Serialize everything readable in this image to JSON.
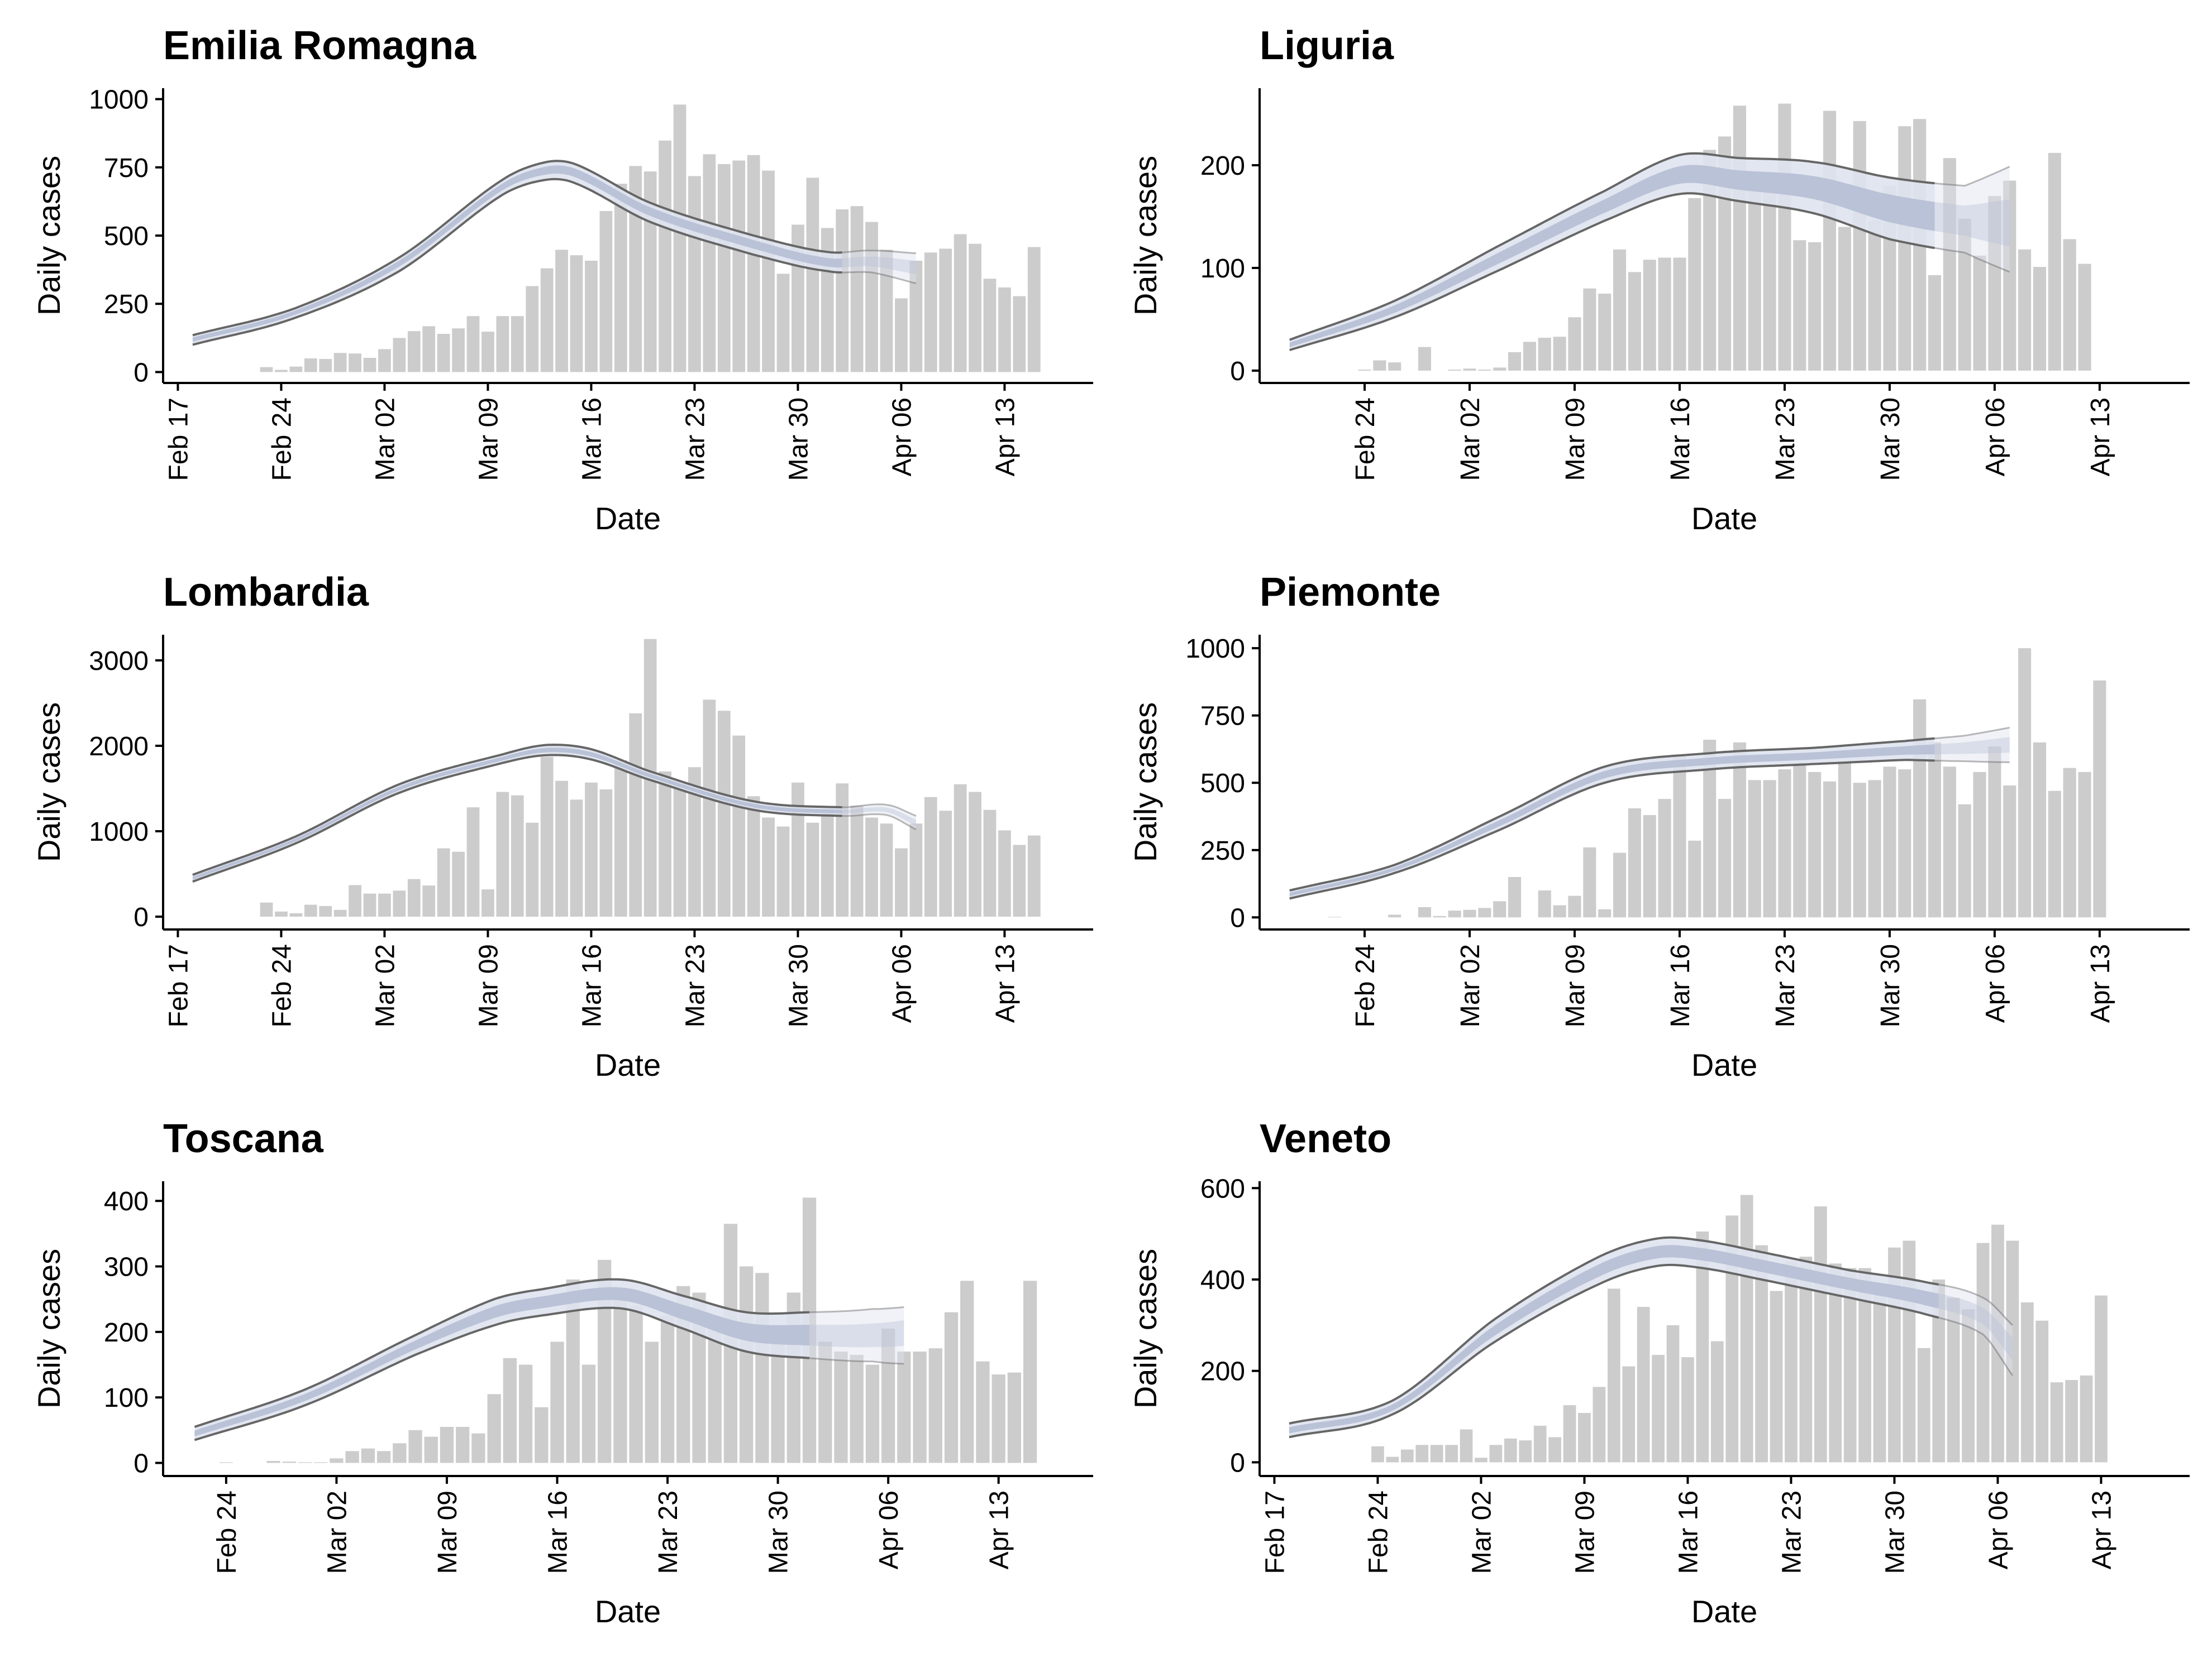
{
  "figure": {
    "colors": {
      "bar": "#cccccc",
      "band_outer": "#dfe3ee",
      "band_inner": "#b7c0d6",
      "outline": "#666666"
    }
  },
  "chart_data": [
    {
      "type": "bar",
      "title": "Emilia Romagna",
      "xlabel": "Date",
      "ylabel": "Daily cases",
      "x_ticks": [
        "Feb 17",
        "Feb 24",
        "Mar 02",
        "Mar 09",
        "Mar 16",
        "Mar 23",
        "Mar 30",
        "Apr 06",
        "Apr 13"
      ],
      "y_ticks": [
        "0",
        "250",
        "500",
        "750",
        "1000"
      ],
      "ylim": [
        -40,
        1040
      ],
      "xlim": [
        "2020-02-16",
        "2020-04-19"
      ],
      "bar_start": "2020-02-23",
      "values": [
        18,
        8,
        20,
        50,
        48,
        70,
        68,
        52,
        84,
        125,
        150,
        168,
        140,
        160,
        205,
        148,
        205,
        205,
        315,
        380,
        448,
        428,
        408,
        590,
        690,
        755,
        735,
        848,
        980,
        718,
        798,
        762,
        775,
        795,
        738,
        360,
        540,
        712,
        528,
        596,
        608,
        550,
        448,
        270,
        408,
        438,
        452,
        505,
        470,
        342,
        310,
        278,
        458
      ],
      "model": {
        "start": "2020-02-18",
        "end": "2020-04-07",
        "forecast_start": "2020-04-02",
        "knots": [
          [
            0,
            120
          ],
          [
            7,
            220
          ],
          [
            14,
            400
          ],
          [
            21,
            680
          ],
          [
            24,
            740
          ],
          [
            26,
            730
          ],
          [
            31,
            590
          ],
          [
            38,
            470
          ],
          [
            43,
            400
          ],
          [
            46,
            405
          ],
          [
            49,
            385
          ]
        ],
        "lower_width": [
          20,
          20,
          30,
          30,
          35,
          40,
          40,
          40,
          30,
          40,
          60
        ],
        "upper_width": [
          15,
          15,
          20,
          25,
          30,
          30,
          30,
          30,
          40,
          40,
          50
        ]
      }
    },
    {
      "type": "bar",
      "title": "Liguria",
      "xlabel": "Date",
      "ylabel": "Daily cases",
      "x_ticks": [
        "Feb 24",
        "Mar 02",
        "Mar 09",
        "Mar 16",
        "Mar 23",
        "Mar 30",
        "Apr 06",
        "Apr 13"
      ],
      "y_ticks": [
        "0",
        "100",
        "200"
      ],
      "ylim": [
        -12,
        275
      ],
      "xlim": [
        "2020-02-17",
        "2020-04-19"
      ],
      "bar_start": "2020-02-24",
      "values": [
        1,
        10,
        8,
        0,
        23,
        0,
        1,
        2,
        1,
        3,
        18,
        28,
        32,
        33,
        52,
        80,
        75,
        118,
        96,
        108,
        110,
        110,
        168,
        215,
        228,
        258,
        193,
        190,
        260,
        127,
        125,
        253,
        140,
        243,
        146,
        180,
        238,
        245,
        93,
        207,
        148,
        112,
        170,
        185,
        118,
        101,
        212,
        128,
        104
      ],
      "model": {
        "start": "2020-02-19",
        "end": "2020-04-07",
        "forecast_start": "2020-04-02",
        "knots": [
          [
            0,
            25
          ],
          [
            7,
            60
          ],
          [
            14,
            110
          ],
          [
            21,
            160
          ],
          [
            26,
            190
          ],
          [
            30,
            185
          ],
          [
            35,
            178
          ],
          [
            40,
            158
          ],
          [
            45,
            145
          ],
          [
            49,
            140
          ]
        ],
        "lower_width": [
          5,
          8,
          12,
          14,
          18,
          20,
          25,
          30,
          30,
          50
        ],
        "upper_width": [
          5,
          8,
          12,
          15,
          20,
          22,
          25,
          30,
          35,
          65
        ]
      }
    },
    {
      "type": "bar",
      "title": "Lombardia",
      "xlabel": "Date",
      "ylabel": "Daily cases",
      "x_ticks": [
        "Feb 17",
        "Feb 24",
        "Mar 02",
        "Mar 09",
        "Mar 16",
        "Mar 23",
        "Mar 30",
        "Apr 06",
        "Apr 13"
      ],
      "y_ticks": [
        "0",
        "1000",
        "2000",
        "3000"
      ],
      "ylim": [
        -150,
        3300
      ],
      "xlim": [
        "2020-02-16",
        "2020-04-19"
      ],
      "bar_start": "2020-02-23",
      "values": [
        165,
        60,
        40,
        140,
        125,
        80,
        370,
        270,
        270,
        305,
        440,
        365,
        800,
        760,
        1280,
        320,
        1460,
        1420,
        1100,
        1870,
        1590,
        1370,
        1570,
        1490,
        1830,
        2380,
        3250,
        1700,
        1560,
        1750,
        2540,
        2410,
        2120,
        1410,
        1160,
        1055,
        1570,
        1100,
        1260,
        1560,
        1300,
        1160,
        1090,
        800,
        1090,
        1400,
        1240,
        1550,
        1460,
        1250,
        1010,
        840,
        950
      ],
      "model": {
        "start": "2020-02-18",
        "end": "2020-04-07",
        "forecast_start": "2020-04-02",
        "knots": [
          [
            0,
            450
          ],
          [
            7,
            900
          ],
          [
            14,
            1500
          ],
          [
            21,
            1850
          ],
          [
            24,
            1950
          ],
          [
            27,
            1900
          ],
          [
            31,
            1650
          ],
          [
            38,
            1300
          ],
          [
            44,
            1230
          ],
          [
            47,
            1250
          ],
          [
            49,
            1100
          ]
        ],
        "lower_width": [
          40,
          40,
          50,
          50,
          60,
          60,
          50,
          50,
          50,
          60,
          80
        ],
        "upper_width": [
          40,
          40,
          50,
          50,
          60,
          60,
          50,
          50,
          50,
          60,
          80
        ]
      }
    },
    {
      "type": "bar",
      "title": "Piemonte",
      "xlabel": "Date",
      "ylabel": "Daily cases",
      "x_ticks": [
        "Feb 24",
        "Mar 02",
        "Mar 09",
        "Mar 16",
        "Mar 23",
        "Mar 30",
        "Apr 06",
        "Apr 13"
      ],
      "y_ticks": [
        "0",
        "250",
        "500",
        "750",
        "1000"
      ],
      "ylim": [
        -45,
        1050
      ],
      "xlim": [
        "2020-02-17",
        "2020-04-19"
      ],
      "bar_start": "2020-02-22",
      "values": [
        2,
        0,
        0,
        0,
        10,
        0,
        38,
        5,
        25,
        28,
        35,
        60,
        150,
        0,
        100,
        45,
        80,
        260,
        30,
        240,
        405,
        380,
        440,
        600,
        285,
        660,
        440,
        650,
        510,
        510,
        550,
        575,
        540,
        505,
        580,
        500,
        510,
        560,
        550,
        810,
        650,
        560,
        420,
        540,
        635,
        490,
        1000,
        650,
        470,
        555,
        540,
        880
      ],
      "model": {
        "start": "2020-02-19",
        "end": "2020-04-07",
        "forecast_start": "2020-04-02",
        "knots": [
          [
            0,
            85
          ],
          [
            7,
            180
          ],
          [
            14,
            350
          ],
          [
            21,
            530
          ],
          [
            28,
            580
          ],
          [
            35,
            600
          ],
          [
            41,
            620
          ],
          [
            45,
            630
          ],
          [
            49,
            645
          ]
        ],
        "lower_width": [
          15,
          15,
          25,
          30,
          30,
          30,
          35,
          50,
          70
        ],
        "upper_width": [
          15,
          15,
          25,
          30,
          30,
          30,
          35,
          45,
          70
        ]
      }
    },
    {
      "type": "bar",
      "title": "Toscana",
      "xlabel": "Date",
      "ylabel": "Daily cases",
      "x_ticks": [
        "Feb 24",
        "Mar 02",
        "Mar 09",
        "Mar 16",
        "Mar 23",
        "Mar 30",
        "Apr 06",
        "Apr 13"
      ],
      "y_ticks": [
        "0",
        "100",
        "200",
        "300",
        "400"
      ],
      "ylim": [
        -20,
        430
      ],
      "xlim": [
        "2020-02-20",
        "2020-04-19"
      ],
      "bar_start": "2020-02-24",
      "values": [
        1,
        0,
        0,
        3,
        2,
        1,
        1,
        7,
        18,
        22,
        18,
        30,
        50,
        40,
        55,
        55,
        45,
        105,
        160,
        150,
        85,
        185,
        280,
        150,
        310,
        255,
        240,
        185,
        225,
        270,
        260,
        225,
        365,
        300,
        290,
        200,
        260,
        405,
        185,
        170,
        165,
        150,
        205,
        170,
        170,
        175,
        230,
        278,
        155,
        135,
        138,
        278
      ],
      "model": {
        "start": "2020-02-22",
        "end": "2020-04-07",
        "forecast_start": "2020-04-01",
        "knots": [
          [
            0,
            45
          ],
          [
            7,
            100
          ],
          [
            14,
            180
          ],
          [
            19,
            230
          ],
          [
            22,
            245
          ],
          [
            27,
            258
          ],
          [
            31,
            230
          ],
          [
            35,
            200
          ],
          [
            39,
            195
          ],
          [
            43,
            195
          ],
          [
            46,
            205
          ]
        ],
        "lower_width": [
          10,
          12,
          15,
          20,
          20,
          22,
          25,
          30,
          35,
          40,
          55
        ],
        "upper_width": [
          10,
          12,
          15,
          20,
          20,
          22,
          25,
          30,
          35,
          40,
          35
        ]
      }
    },
    {
      "type": "bar",
      "title": "Veneto",
      "xlabel": "Date",
      "ylabel": "Daily cases",
      "x_ticks": [
        "Feb 17",
        "Feb 24",
        "Mar 02",
        "Mar 09",
        "Mar 16",
        "Mar 23",
        "Mar 30",
        "Apr 06",
        "Apr 13"
      ],
      "y_ticks": [
        "0",
        "200",
        "400",
        "600"
      ],
      "ylim": [
        -30,
        615
      ],
      "xlim": [
        "2020-02-16",
        "2020-04-19"
      ],
      "bar_start": "2020-02-24",
      "values": [
        35,
        12,
        28,
        38,
        38,
        38,
        72,
        10,
        38,
        52,
        48,
        80,
        55,
        125,
        108,
        165,
        380,
        210,
        340,
        235,
        300,
        230,
        505,
        265,
        540,
        585,
        475,
        375,
        440,
        450,
        560,
        435,
        425,
        425,
        380,
        470,
        485,
        250,
        400,
        360,
        335,
        480,
        520,
        485,
        350,
        310,
        175,
        180,
        190,
        365
      ],
      "model": {
        "start": "2020-02-18",
        "end": "2020-04-07",
        "forecast_start": "2020-04-02",
        "knots": [
          [
            0,
            70
          ],
          [
            7,
            120
          ],
          [
            14,
            290
          ],
          [
            21,
            420
          ],
          [
            25,
            460
          ],
          [
            28,
            455
          ],
          [
            32,
            430
          ],
          [
            38,
            390
          ],
          [
            43,
            360
          ],
          [
            47,
            320
          ],
          [
            49,
            250
          ]
        ],
        "lower_width": [
          15,
          15,
          25,
          30,
          30,
          30,
          30,
          30,
          35,
          40,
          60
        ],
        "upper_width": [
          15,
          15,
          25,
          30,
          30,
          30,
          30,
          30,
          35,
          40,
          50
        ]
      }
    }
  ]
}
